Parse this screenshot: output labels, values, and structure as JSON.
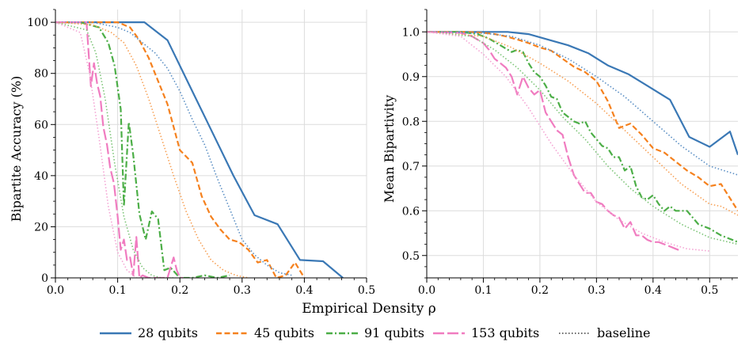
{
  "figure": {
    "shared_xlabel": "Empirical Density ρ",
    "legend": [
      {
        "label": "28 qubits",
        "color": "#3a78b5",
        "dash": "solid"
      },
      {
        "label": "45 qubits",
        "color": "#f5811e",
        "dash": "dashed"
      },
      {
        "label": "91 qubits",
        "color": "#4cae47",
        "dash": "dashdot"
      },
      {
        "label": "153 qubits",
        "color": "#f07cc0",
        "dash": "longdash"
      },
      {
        "label": "baseline",
        "color": "#555555",
        "dash": "dotted"
      }
    ]
  },
  "chart_data": [
    {
      "type": "line",
      "ylabel": "Bipartite Accuracy (%)",
      "xlabel": "Empirical Density ρ",
      "xlim": [
        0,
        0.5
      ],
      "ylim": [
        0,
        105
      ],
      "xticks": [
        "0.0",
        "0.1",
        "0.2",
        "0.3",
        "0.4",
        "0.5"
      ],
      "xtick_values": [
        0,
        0.1,
        0.2,
        0.3,
        0.4,
        0.5
      ],
      "yticks": [
        "0",
        "20",
        "40",
        "60",
        "80",
        "100"
      ],
      "ytick_values": [
        0,
        20,
        40,
        60,
        80,
        100
      ],
      "series": [
        {
          "name": "28 qubits",
          "color": "#3a78b5",
          "dash": "solid",
          "x": [
            0,
            0.04,
            0.08,
            0.11,
            0.143,
            0.18,
            0.214,
            0.25,
            0.286,
            0.32,
            0.357,
            0.393,
            0.43,
            0.462
          ],
          "y": [
            100,
            100,
            100,
            100,
            100,
            93,
            76,
            58,
            40,
            24.5,
            21,
            7,
            6.5,
            0
          ]
        },
        {
          "name": "45 qubits",
          "color": "#f5811e",
          "dash": "dashed",
          "x": [
            0,
            0.05,
            0.085,
            0.1,
            0.12,
            0.135,
            0.15,
            0.165,
            0.18,
            0.2,
            0.22,
            0.235,
            0.25,
            0.265,
            0.28,
            0.295,
            0.31,
            0.325,
            0.34,
            0.355,
            0.37,
            0.385,
            0.4
          ],
          "y": [
            100,
            100,
            100,
            100,
            98,
            93,
            86,
            77,
            68,
            50,
            45,
            32,
            24,
            19,
            15,
            14,
            11,
            6,
            7,
            0,
            1,
            6,
            0
          ]
        },
        {
          "name": "91 qubits",
          "color": "#4cae47",
          "dash": "dashdot",
          "x": [
            0,
            0.04,
            0.07,
            0.085,
            0.095,
            0.105,
            0.11,
            0.118,
            0.125,
            0.135,
            0.145,
            0.155,
            0.165,
            0.175,
            0.185,
            0.2,
            0.22,
            0.24,
            0.26,
            0.28
          ],
          "y": [
            100,
            100,
            98,
            92,
            83,
            66,
            28,
            61,
            48,
            25,
            15,
            26,
            23,
            3,
            4,
            0,
            0,
            1,
            0,
            1
          ]
        },
        {
          "name": "153 qubits",
          "color": "#f07cc0",
          "dash": "longdash",
          "x": [
            0,
            0.05,
            0.057,
            0.062,
            0.067,
            0.072,
            0.077,
            0.083,
            0.088,
            0.094,
            0.1,
            0.105,
            0.11,
            0.115,
            0.12,
            0.125,
            0.13,
            0.135,
            0.14,
            0.15,
            0.165,
            0.18,
            0.19,
            0.195,
            0.2,
            0.205
          ],
          "y": [
            100,
            100,
            75,
            84,
            76,
            71,
            59,
            52,
            43,
            37,
            24,
            11,
            15,
            7,
            8,
            1,
            16,
            0,
            1,
            0,
            0,
            0,
            8,
            3,
            0,
            0
          ]
        },
        {
          "name": "baseline 28 qubits",
          "color": "#5b8fc4",
          "dash": "dotted",
          "x": [
            0,
            0.06,
            0.1,
            0.12,
            0.14,
            0.16,
            0.18,
            0.2,
            0.22,
            0.24,
            0.26,
            0.28,
            0.3,
            0.32,
            0.34,
            0.36,
            0.38
          ],
          "y": [
            100,
            100,
            98,
            96,
            92,
            88,
            82,
            73,
            62,
            52,
            39,
            27,
            15,
            9,
            5,
            2,
            1
          ]
        },
        {
          "name": "baseline 45 qubits",
          "color": "#f7a055",
          "dash": "dotted",
          "x": [
            0,
            0.06,
            0.09,
            0.11,
            0.13,
            0.15,
            0.17,
            0.19,
            0.21,
            0.23,
            0.25,
            0.27,
            0.29,
            0.31
          ],
          "y": [
            100,
            99,
            96,
            92,
            83,
            70,
            55,
            40,
            26,
            15,
            7,
            3,
            1,
            0
          ]
        },
        {
          "name": "baseline 91 qubits",
          "color": "#7cc477",
          "dash": "dotted",
          "x": [
            0,
            0.05,
            0.065,
            0.08,
            0.095,
            0.11,
            0.125,
            0.14,
            0.155,
            0.17,
            0.19
          ],
          "y": [
            100,
            97,
            88,
            70,
            45,
            24,
            11,
            4,
            1,
            0,
            0
          ]
        },
        {
          "name": "baseline 153 qubits",
          "color": "#f4a3d3",
          "dash": "dotted",
          "x": [
            0,
            0.04,
            0.055,
            0.07,
            0.085,
            0.1,
            0.115,
            0.13,
            0.145
          ],
          "y": [
            100,
            96,
            80,
            55,
            28,
            10,
            3,
            0,
            0
          ]
        }
      ]
    },
    {
      "type": "line",
      "ylabel": "Mean Bipartivity",
      "xlabel": "Empirical Density ρ",
      "xlim": [
        0,
        0.55
      ],
      "ylim": [
        0.45,
        1.05
      ],
      "xticks": [
        "0.0",
        "0.1",
        "0.2",
        "0.3",
        "0.4",
        "0.5"
      ],
      "xtick_values": [
        0,
        0.1,
        0.2,
        0.3,
        0.4,
        0.5
      ],
      "yticks": [
        "0.5",
        "0.6",
        "0.7",
        "0.8",
        "0.9",
        "1.0"
      ],
      "ytick_values": [
        0.5,
        0.6,
        0.7,
        0.8,
        0.9,
        1.0
      ],
      "series": [
        {
          "name": "28 qubits",
          "color": "#3a78b5",
          "dash": "solid",
          "x": [
            0,
            0.07,
            0.107,
            0.143,
            0.18,
            0.214,
            0.25,
            0.286,
            0.32,
            0.357,
            0.393,
            0.43,
            0.464,
            0.5,
            0.536,
            0.55
          ],
          "y": [
            1.0,
            1.0,
            1.0,
            1.0,
            0.995,
            0.983,
            0.97,
            0.952,
            0.925,
            0.905,
            0.877,
            0.848,
            0.765,
            0.743,
            0.777,
            0.725
          ]
        },
        {
          "name": "45 qubits",
          "color": "#f5811e",
          "dash": "dashed",
          "x": [
            0,
            0.07,
            0.1,
            0.12,
            0.14,
            0.16,
            0.18,
            0.2,
            0.22,
            0.24,
            0.26,
            0.28,
            0.3,
            0.32,
            0.34,
            0.36,
            0.38,
            0.4,
            0.42,
            0.44,
            0.46,
            0.48,
            0.5,
            0.52,
            0.55
          ],
          "y": [
            1.0,
            1.0,
            0.998,
            0.995,
            0.99,
            0.983,
            0.975,
            0.965,
            0.958,
            0.94,
            0.922,
            0.91,
            0.89,
            0.845,
            0.785,
            0.795,
            0.77,
            0.74,
            0.73,
            0.71,
            0.69,
            0.675,
            0.655,
            0.66,
            0.6
          ]
        },
        {
          "name": "91 qubits",
          "color": "#4cae47",
          "dash": "dashdot",
          "x": [
            0,
            0.06,
            0.09,
            0.11,
            0.13,
            0.15,
            0.16,
            0.17,
            0.18,
            0.19,
            0.2,
            0.21,
            0.22,
            0.23,
            0.24,
            0.25,
            0.26,
            0.27,
            0.28,
            0.29,
            0.3,
            0.31,
            0.32,
            0.33,
            0.34,
            0.35,
            0.36,
            0.37,
            0.38,
            0.39,
            0.4,
            0.41,
            0.42,
            0.43,
            0.44,
            0.46,
            0.48,
            0.5,
            0.52,
            0.55
          ],
          "y": [
            1.0,
            1.0,
            0.995,
            0.985,
            0.97,
            0.955,
            0.96,
            0.955,
            0.93,
            0.91,
            0.9,
            0.88,
            0.855,
            0.85,
            0.82,
            0.81,
            0.8,
            0.795,
            0.8,
            0.775,
            0.76,
            0.745,
            0.74,
            0.72,
            0.72,
            0.69,
            0.7,
            0.655,
            0.63,
            0.625,
            0.635,
            0.615,
            0.6,
            0.61,
            0.6,
            0.6,
            0.57,
            0.56,
            0.545,
            0.53
          ]
        },
        {
          "name": "153 qubits",
          "color": "#f07cc0",
          "dash": "longdash",
          "x": [
            0,
            0.06,
            0.08,
            0.1,
            0.11,
            0.12,
            0.13,
            0.14,
            0.15,
            0.16,
            0.17,
            0.18,
            0.19,
            0.2,
            0.21,
            0.22,
            0.23,
            0.24,
            0.25,
            0.26,
            0.27,
            0.28,
            0.29,
            0.3,
            0.31,
            0.32,
            0.33,
            0.34,
            0.35,
            0.36,
            0.37,
            0.38,
            0.39,
            0.4,
            0.41,
            0.42,
            0.43,
            0.44,
            0.45
          ],
          "y": [
            1.0,
            0.998,
            0.99,
            0.975,
            0.96,
            0.94,
            0.93,
            0.92,
            0.9,
            0.86,
            0.9,
            0.875,
            0.86,
            0.87,
            0.82,
            0.8,
            0.78,
            0.77,
            0.72,
            0.68,
            0.66,
            0.64,
            0.64,
            0.62,
            0.615,
            0.6,
            0.59,
            0.585,
            0.56,
            0.575,
            0.545,
            0.545,
            0.535,
            0.53,
            0.53,
            0.525,
            0.52,
            0.515,
            0.51
          ]
        },
        {
          "name": "baseline 28 qubits",
          "color": "#5b8fc4",
          "dash": "dotted",
          "x": [
            0,
            0.1,
            0.15,
            0.2,
            0.25,
            0.3,
            0.35,
            0.4,
            0.45,
            0.5,
            0.55
          ],
          "y": [
            1.0,
            0.997,
            0.99,
            0.97,
            0.94,
            0.9,
            0.855,
            0.8,
            0.745,
            0.7,
            0.68
          ]
        },
        {
          "name": "baseline 45 qubits",
          "color": "#f7a055",
          "dash": "dotted",
          "x": [
            0,
            0.1,
            0.15,
            0.2,
            0.25,
            0.3,
            0.35,
            0.4,
            0.45,
            0.5,
            0.52,
            0.55
          ],
          "y": [
            1.0,
            0.99,
            0.965,
            0.93,
            0.89,
            0.84,
            0.78,
            0.72,
            0.66,
            0.615,
            0.61,
            0.59
          ]
        },
        {
          "name": "baseline 91 qubits",
          "color": "#7cc477",
          "dash": "dotted",
          "x": [
            0,
            0.08,
            0.12,
            0.16,
            0.2,
            0.24,
            0.28,
            0.32,
            0.36,
            0.4,
            0.45,
            0.5,
            0.55
          ],
          "y": [
            1.0,
            0.99,
            0.96,
            0.92,
            0.87,
            0.81,
            0.76,
            0.7,
            0.65,
            0.61,
            0.57,
            0.54,
            0.525
          ]
        },
        {
          "name": "baseline 153 qubits",
          "color": "#f4a3d3",
          "dash": "dotted",
          "x": [
            0,
            0.06,
            0.1,
            0.14,
            0.18,
            0.22,
            0.26,
            0.3,
            0.34,
            0.38,
            0.42,
            0.46,
            0.5
          ],
          "y": [
            1.0,
            0.99,
            0.95,
            0.9,
            0.83,
            0.75,
            0.68,
            0.62,
            0.58,
            0.55,
            0.53,
            0.515,
            0.51
          ]
        }
      ]
    }
  ]
}
